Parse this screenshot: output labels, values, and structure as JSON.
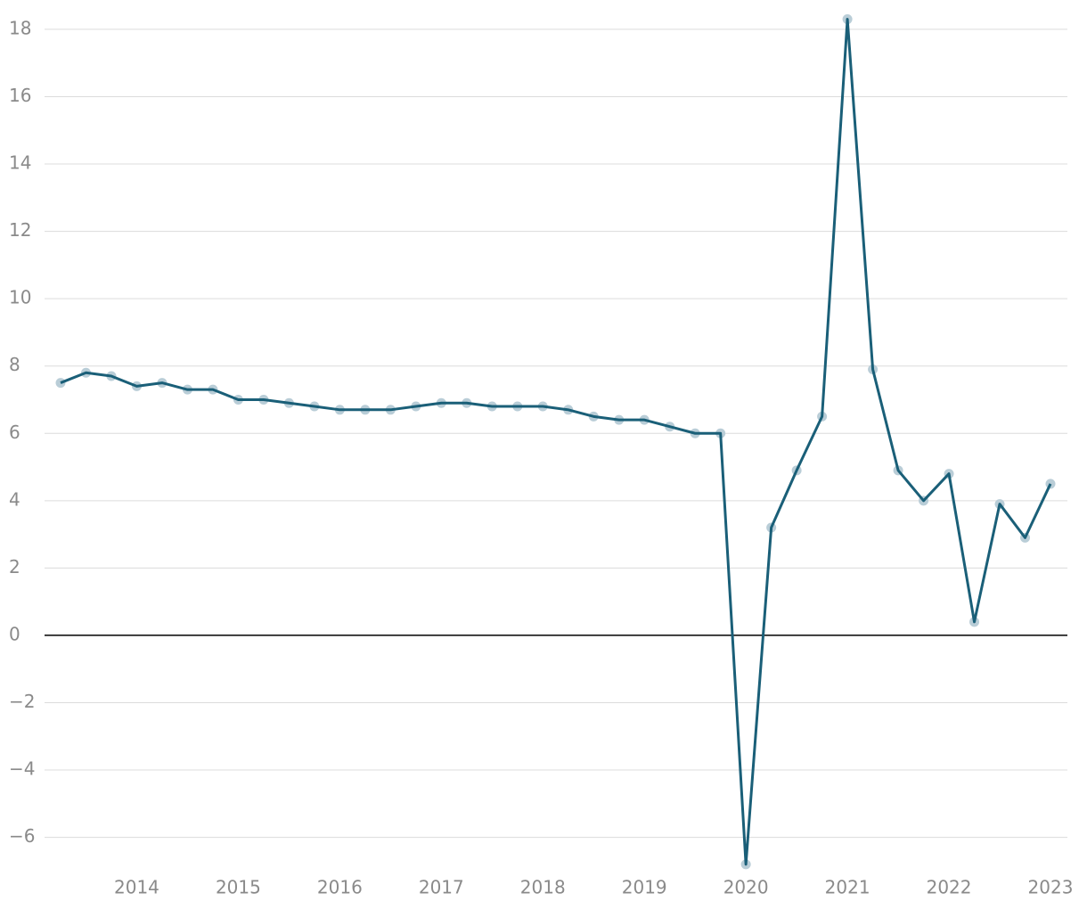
{
  "chart_data": {
    "type": "line",
    "categories": [
      null,
      null,
      null,
      "2014",
      null,
      null,
      null,
      "2015",
      null,
      null,
      null,
      "2016",
      null,
      null,
      null,
      "2017",
      null,
      null,
      null,
      "2018",
      null,
      null,
      null,
      "2019",
      null,
      null,
      null,
      "2020",
      null,
      null,
      null,
      "2021",
      null,
      null,
      null,
      "2022",
      null,
      null,
      null,
      "2023"
    ],
    "values": [
      7.5,
      7.8,
      7.7,
      7.4,
      7.5,
      7.3,
      7.3,
      7.0,
      7.0,
      6.9,
      6.8,
      6.7,
      6.7,
      6.7,
      6.8,
      6.9,
      6.9,
      6.8,
      6.8,
      6.8,
      6.7,
      6.5,
      6.4,
      6.4,
      6.2,
      6.0,
      6.0,
      -6.8,
      3.2,
      4.9,
      6.5,
      18.3,
      7.9,
      4.9,
      4.0,
      4.8,
      0.4,
      3.9,
      2.9,
      4.5
    ],
    "color": "#1a5f78",
    "marker_color": "#b9cdd7",
    "ylim": [
      -7,
      18.5
    ],
    "yticks": [
      {
        "value": -6,
        "label": "−6"
      },
      {
        "value": -4,
        "label": "−4"
      },
      {
        "value": -2,
        "label": "−2"
      },
      0,
      2,
      4,
      6,
      8,
      10,
      12,
      14,
      16,
      18
    ],
    "grid": true
  }
}
